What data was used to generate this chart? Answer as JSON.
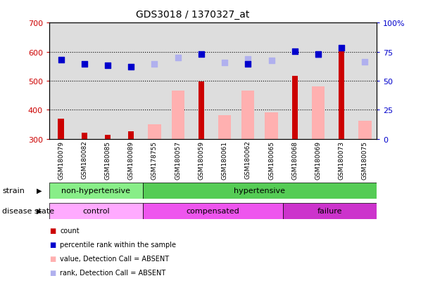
{
  "title": "GDS3018 / 1370327_at",
  "samples": [
    "GSM180079",
    "GSM180082",
    "GSM180085",
    "GSM180089",
    "GSM178755",
    "GSM180057",
    "GSM180059",
    "GSM180061",
    "GSM180062",
    "GSM180065",
    "GSM180068",
    "GSM180069",
    "GSM180073",
    "GSM180075"
  ],
  "count_values": [
    370,
    322,
    315,
    325,
    null,
    null,
    497,
    null,
    null,
    null,
    517,
    null,
    607,
    null
  ],
  "percentile_values": [
    573,
    558,
    553,
    549,
    null,
    null,
    592,
    null,
    558,
    null,
    602,
    592,
    613,
    null
  ],
  "absent_value_values": [
    null,
    null,
    null,
    null,
    349,
    467,
    null,
    382,
    467,
    390,
    null,
    480,
    null,
    362
  ],
  "absent_rank_values": [
    null,
    null,
    null,
    null,
    558,
    580,
    null,
    563,
    575,
    570,
    null,
    590,
    null,
    565
  ],
  "ylim_left": [
    300,
    700
  ],
  "ylim_right": [
    0,
    100
  ],
  "yticks_left": [
    300,
    400,
    500,
    600,
    700
  ],
  "yticks_right": [
    0,
    25,
    50,
    75,
    100
  ],
  "count_color": "#cc0000",
  "percentile_color": "#0000cc",
  "absent_value_color": "#ffb0b0",
  "absent_rank_color": "#b0b0ee",
  "strain_groups": [
    {
      "label": "non-hypertensive",
      "start": 0,
      "end": 4,
      "color": "#88ee88"
    },
    {
      "label": "hypertensive",
      "start": 4,
      "end": 14,
      "color": "#55cc55"
    }
  ],
  "disease_groups": [
    {
      "label": "control",
      "start": 0,
      "end": 4,
      "color": "#ffaaff"
    },
    {
      "label": "compensated",
      "start": 4,
      "end": 10,
      "color": "#ee55ee"
    },
    {
      "label": "failure",
      "start": 10,
      "end": 14,
      "color": "#cc33cc"
    }
  ],
  "strain_label": "strain",
  "disease_label": "disease state",
  "legend_items": [
    {
      "label": "count",
      "color": "#cc0000"
    },
    {
      "label": "percentile rank within the sample",
      "color": "#0000cc"
    },
    {
      "label": "value, Detection Call = ABSENT",
      "color": "#ffb0b0"
    },
    {
      "label": "rank, Detection Call = ABSENT",
      "color": "#b0b0ee"
    }
  ],
  "plot_bg_color": "#dddddd",
  "xlabel_color": "#cc0000",
  "ylabel_right_color": "#0000cc"
}
